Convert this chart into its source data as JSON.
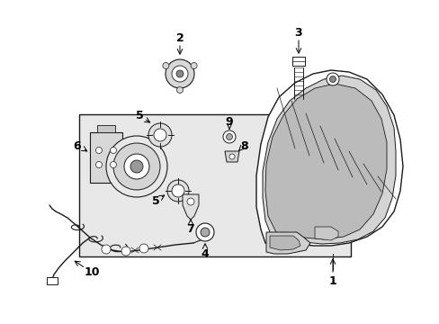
{
  "bg_color": "#ffffff",
  "panel_color": "#e8e8e8",
  "lc": "#1a1a1a",
  "figsize": [
    4.89,
    3.6
  ],
  "dpi": 100
}
